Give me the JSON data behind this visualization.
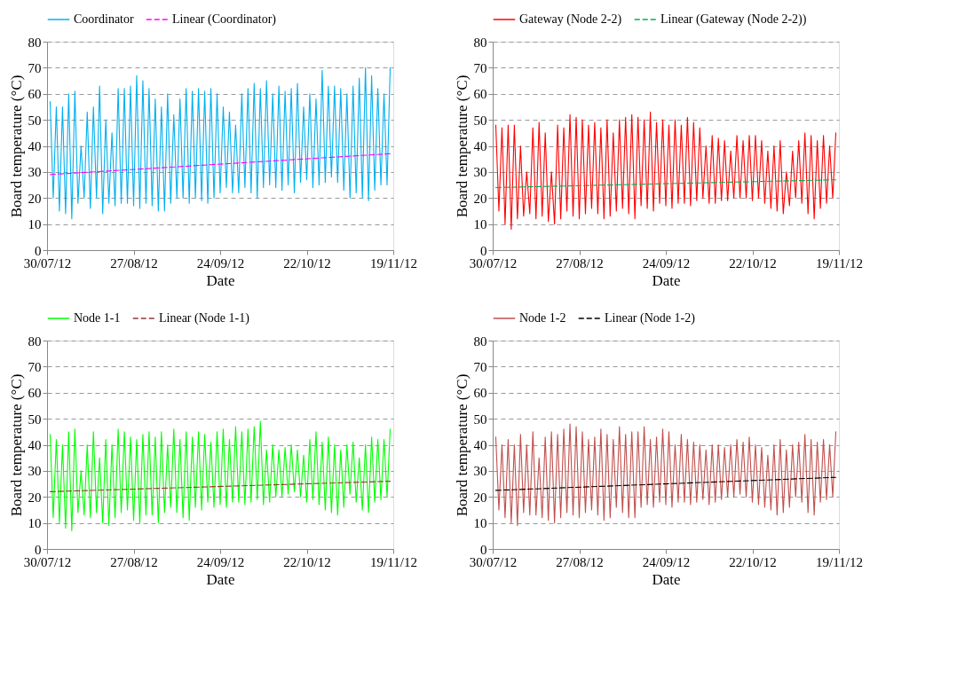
{
  "chart_data": [
    {
      "type": "line",
      "xlabel": "Date",
      "ylabel": "Board temperature (°C)",
      "legend": "top",
      "grid": "y",
      "ylim": [
        0,
        80
      ],
      "yticks": [
        0,
        10,
        20,
        30,
        40,
        50,
        60,
        70,
        80
      ],
      "xlim": [
        "2012-07-30",
        "2012-11-19"
      ],
      "xticks": [
        {
          "value": "2012-07-30",
          "label": "30/07/12"
        },
        {
          "value": "2012-08-27",
          "label": "27/08/12"
        },
        {
          "value": "2012-09-24",
          "label": "24/09/12"
        },
        {
          "value": "2012-10-22",
          "label": "22/10/12"
        },
        {
          "value": "2012-11-19",
          "label": "19/11/12"
        }
      ],
      "x": [
        "2012-07-31",
        "2012-08-01",
        "2012-08-02",
        "2012-08-03",
        "2012-08-04",
        "2012-08-05",
        "2012-08-06",
        "2012-08-07",
        "2012-08-08",
        "2012-08-09",
        "2012-08-10",
        "2012-08-11",
        "2012-08-12",
        "2012-08-13",
        "2012-08-14",
        "2012-08-15",
        "2012-08-16",
        "2012-08-17",
        "2012-08-18",
        "2012-08-19",
        "2012-08-20",
        "2012-08-21",
        "2012-08-22",
        "2012-08-23",
        "2012-08-24",
        "2012-08-25",
        "2012-08-26",
        "2012-08-27",
        "2012-08-28",
        "2012-08-29",
        "2012-08-30",
        "2012-08-31",
        "2012-09-01",
        "2012-09-02",
        "2012-09-03",
        "2012-09-04",
        "2012-09-05",
        "2012-09-06",
        "2012-09-07",
        "2012-09-08",
        "2012-09-09",
        "2012-09-10",
        "2012-09-11",
        "2012-09-12",
        "2012-09-13",
        "2012-09-14",
        "2012-09-15",
        "2012-09-16",
        "2012-09-17",
        "2012-09-18",
        "2012-09-19",
        "2012-09-20",
        "2012-09-21",
        "2012-09-22",
        "2012-09-23",
        "2012-09-24",
        "2012-09-25",
        "2012-09-26",
        "2012-09-27",
        "2012-09-28",
        "2012-09-29",
        "2012-09-30",
        "2012-10-01",
        "2012-10-02",
        "2012-10-03",
        "2012-10-04",
        "2012-10-05",
        "2012-10-06",
        "2012-10-07",
        "2012-10-08",
        "2012-10-09",
        "2012-10-10",
        "2012-10-11",
        "2012-10-12",
        "2012-10-13",
        "2012-10-14",
        "2012-10-15",
        "2012-10-16",
        "2012-10-17",
        "2012-10-18",
        "2012-10-19",
        "2012-10-20",
        "2012-10-21",
        "2012-10-22",
        "2012-10-23",
        "2012-10-24",
        "2012-10-25",
        "2012-10-26",
        "2012-10-27",
        "2012-10-28",
        "2012-10-29",
        "2012-10-30",
        "2012-10-31",
        "2012-11-01",
        "2012-11-02",
        "2012-11-03",
        "2012-11-04",
        "2012-11-05",
        "2012-11-06",
        "2012-11-07",
        "2012-11-08",
        "2012-11-09",
        "2012-11-10",
        "2012-11-11",
        "2012-11-12",
        "2012-11-13",
        "2012-11-14",
        "2012-11-15",
        "2012-11-16",
        "2012-11-17",
        "2012-11-18"
      ],
      "series": [
        {
          "name": "Coordinator",
          "color": "#00b0f0",
          "line_style": "solid",
          "values": [
            57,
            20,
            55,
            15,
            55,
            14,
            60,
            12,
            61,
            18,
            40,
            20,
            53,
            16,
            55,
            20,
            63,
            14,
            50,
            18,
            45,
            17,
            62,
            18,
            62,
            18,
            63,
            17,
            67,
            16,
            65,
            18,
            62,
            17,
            58,
            15,
            55,
            15,
            60,
            18,
            52,
            20,
            58,
            20,
            62,
            18,
            61,
            20,
            62,
            19,
            61,
            18,
            62,
            20,
            60,
            22,
            55,
            24,
            53,
            22,
            48,
            22,
            60,
            24,
            62,
            22,
            64,
            20,
            62,
            24,
            65,
            25,
            60,
            24,
            63,
            23,
            61,
            25,
            62,
            22,
            64,
            26,
            55,
            27,
            60,
            24,
            58,
            25,
            69,
            26,
            63,
            28,
            63,
            26,
            62,
            23,
            60,
            20,
            63,
            22,
            66,
            20,
            70,
            19,
            67,
            23,
            62,
            25,
            60,
            25,
            70
          ]
        },
        {
          "name": "Linear (Coordinator)",
          "color": "#ff00ff",
          "type": "line",
          "line_style": "dashed",
          "x": [
            "2012-07-31",
            "2012-11-18"
          ],
          "values": [
            29,
            37
          ]
        }
      ]
    },
    {
      "type": "line",
      "xlabel": "Date",
      "ylabel": "Board temperature (°C)",
      "legend": "top",
      "grid": "y",
      "ylim": [
        0,
        80
      ],
      "yticks": [
        0,
        10,
        20,
        30,
        40,
        50,
        60,
        70,
        80
      ],
      "xlim": [
        "2012-07-30",
        "2012-11-19"
      ],
      "xticks": [
        {
          "value": "2012-07-30",
          "label": "30/07/12"
        },
        {
          "value": "2012-08-27",
          "label": "27/08/12"
        },
        {
          "value": "2012-09-24",
          "label": "24/09/12"
        },
        {
          "value": "2012-10-22",
          "label": "22/10/12"
        },
        {
          "value": "2012-11-19",
          "label": "19/11/12"
        }
      ],
      "x": [
        "2012-07-31",
        "2012-08-01",
        "2012-08-02",
        "2012-08-03",
        "2012-08-04",
        "2012-08-05",
        "2012-08-06",
        "2012-08-07",
        "2012-08-08",
        "2012-08-09",
        "2012-08-10",
        "2012-08-11",
        "2012-08-12",
        "2012-08-13",
        "2012-08-14",
        "2012-08-15",
        "2012-08-16",
        "2012-08-17",
        "2012-08-18",
        "2012-08-19",
        "2012-08-20",
        "2012-08-21",
        "2012-08-22",
        "2012-08-23",
        "2012-08-24",
        "2012-08-25",
        "2012-08-26",
        "2012-08-27",
        "2012-08-28",
        "2012-08-29",
        "2012-08-30",
        "2012-08-31",
        "2012-09-01",
        "2012-09-02",
        "2012-09-03",
        "2012-09-04",
        "2012-09-05",
        "2012-09-06",
        "2012-09-07",
        "2012-09-08",
        "2012-09-09",
        "2012-09-10",
        "2012-09-11",
        "2012-09-12",
        "2012-09-13",
        "2012-09-14",
        "2012-09-15",
        "2012-09-16",
        "2012-09-17",
        "2012-09-18",
        "2012-09-19",
        "2012-09-20",
        "2012-09-21",
        "2012-09-22",
        "2012-09-23",
        "2012-09-24",
        "2012-09-25",
        "2012-09-26",
        "2012-09-27",
        "2012-09-28",
        "2012-09-29",
        "2012-09-30",
        "2012-10-01",
        "2012-10-02",
        "2012-10-03",
        "2012-10-04",
        "2012-10-05",
        "2012-10-06",
        "2012-10-07",
        "2012-10-08",
        "2012-10-09",
        "2012-10-10",
        "2012-10-11",
        "2012-10-12",
        "2012-10-13",
        "2012-10-14",
        "2012-10-15",
        "2012-10-16",
        "2012-10-17",
        "2012-10-18",
        "2012-10-19",
        "2012-10-20",
        "2012-10-21",
        "2012-10-22",
        "2012-10-23",
        "2012-10-24",
        "2012-10-25",
        "2012-10-26",
        "2012-10-27",
        "2012-10-28",
        "2012-10-29",
        "2012-10-30",
        "2012-10-31",
        "2012-11-01",
        "2012-11-02",
        "2012-11-03",
        "2012-11-04",
        "2012-11-05",
        "2012-11-06",
        "2012-11-07",
        "2012-11-08",
        "2012-11-09",
        "2012-11-10",
        "2012-11-11",
        "2012-11-12",
        "2012-11-13",
        "2012-11-14",
        "2012-11-15",
        "2012-11-16",
        "2012-11-17",
        "2012-11-18"
      ],
      "series": [
        {
          "name": "Gateway (Node 2-2)",
          "color": "#ff0000",
          "line_style": "solid",
          "values": [
            48,
            15,
            47,
            10,
            48,
            8,
            48,
            12,
            40,
            13,
            30,
            14,
            47,
            12,
            49,
            13,
            45,
            11,
            30,
            10,
            48,
            12,
            47,
            15,
            52,
            13,
            51,
            12,
            50,
            14,
            48,
            16,
            49,
            14,
            47,
            12,
            50,
            13,
            45,
            15,
            50,
            16,
            51,
            14,
            52,
            12,
            51,
            17,
            50,
            16,
            53,
            15,
            49,
            18,
            50,
            17,
            48,
            16,
            50,
            18,
            48,
            18,
            51,
            17,
            49,
            19,
            47,
            20,
            40,
            18,
            44,
            18,
            43,
            19,
            42,
            19,
            38,
            20,
            44,
            20,
            42,
            20,
            44,
            19,
            44,
            20,
            42,
            18,
            38,
            16,
            40,
            15,
            42,
            14,
            30,
            17,
            38,
            20,
            42,
            18,
            45,
            14,
            44,
            12,
            42,
            16,
            44,
            18,
            40,
            20,
            45
          ]
        },
        {
          "name": "Linear (Gateway (Node 2-2))",
          "color": "#00b050",
          "type": "line",
          "line_style": "dashed",
          "x": [
            "2012-07-31",
            "2012-11-18"
          ],
          "values": [
            24,
            27
          ]
        }
      ]
    },
    {
      "type": "line",
      "xlabel": "Date",
      "ylabel": "Board temperature (°C)",
      "legend": "top",
      "grid": "y",
      "ylim": [
        0,
        80
      ],
      "yticks": [
        0,
        10,
        20,
        30,
        40,
        50,
        60,
        70,
        80
      ],
      "xlim": [
        "2012-07-30",
        "2012-11-19"
      ],
      "xticks": [
        {
          "value": "2012-07-30",
          "label": "30/07/12"
        },
        {
          "value": "2012-08-27",
          "label": "27/08/12"
        },
        {
          "value": "2012-09-24",
          "label": "24/09/12"
        },
        {
          "value": "2012-10-22",
          "label": "22/10/12"
        },
        {
          "value": "2012-11-19",
          "label": "19/11/12"
        }
      ],
      "x": [
        "2012-07-31",
        "2012-08-01",
        "2012-08-02",
        "2012-08-03",
        "2012-08-04",
        "2012-08-05",
        "2012-08-06",
        "2012-08-07",
        "2012-08-08",
        "2012-08-09",
        "2012-08-10",
        "2012-08-11",
        "2012-08-12",
        "2012-08-13",
        "2012-08-14",
        "2012-08-15",
        "2012-08-16",
        "2012-08-17",
        "2012-08-18",
        "2012-08-19",
        "2012-08-20",
        "2012-08-21",
        "2012-08-22",
        "2012-08-23",
        "2012-08-24",
        "2012-08-25",
        "2012-08-26",
        "2012-08-27",
        "2012-08-28",
        "2012-08-29",
        "2012-08-30",
        "2012-08-31",
        "2012-09-01",
        "2012-09-02",
        "2012-09-03",
        "2012-09-04",
        "2012-09-05",
        "2012-09-06",
        "2012-09-07",
        "2012-09-08",
        "2012-09-09",
        "2012-09-10",
        "2012-09-11",
        "2012-09-12",
        "2012-09-13",
        "2012-09-14",
        "2012-09-15",
        "2012-09-16",
        "2012-09-17",
        "2012-09-18",
        "2012-09-19",
        "2012-09-20",
        "2012-09-21",
        "2012-09-22",
        "2012-09-23",
        "2012-09-24",
        "2012-09-25",
        "2012-09-26",
        "2012-09-27",
        "2012-09-28",
        "2012-09-29",
        "2012-09-30",
        "2012-10-01",
        "2012-10-02",
        "2012-10-03",
        "2012-10-04",
        "2012-10-05",
        "2012-10-06",
        "2012-10-07",
        "2012-10-08",
        "2012-10-09",
        "2012-10-10",
        "2012-10-11",
        "2012-10-12",
        "2012-10-13",
        "2012-10-14",
        "2012-10-15",
        "2012-10-16",
        "2012-10-17",
        "2012-10-18",
        "2012-10-19",
        "2012-10-20",
        "2012-10-21",
        "2012-10-22",
        "2012-10-23",
        "2012-10-24",
        "2012-10-25",
        "2012-10-26",
        "2012-10-27",
        "2012-10-28",
        "2012-10-29",
        "2012-10-30",
        "2012-10-31",
        "2012-11-01",
        "2012-11-02",
        "2012-11-03",
        "2012-11-04",
        "2012-11-05",
        "2012-11-06",
        "2012-11-07",
        "2012-11-08",
        "2012-11-09",
        "2012-11-10",
        "2012-11-11",
        "2012-11-12",
        "2012-11-13",
        "2012-11-14",
        "2012-11-15",
        "2012-11-16",
        "2012-11-17",
        "2012-11-18"
      ],
      "series": [
        {
          "name": "Node 1-1",
          "color": "#00ff00",
          "line_style": "solid",
          "values": [
            44,
            12,
            42,
            10,
            40,
            8,
            45,
            7,
            46,
            14,
            30,
            13,
            40,
            12,
            45,
            14,
            35,
            10,
            42,
            9,
            40,
            12,
            46,
            14,
            45,
            15,
            43,
            11,
            42,
            10,
            44,
            13,
            45,
            13,
            43,
            10,
            45,
            14,
            40,
            16,
            46,
            14,
            42,
            12,
            45,
            11,
            43,
            16,
            45,
            15,
            44,
            18,
            41,
            16,
            45,
            17,
            46,
            16,
            42,
            18,
            47,
            18,
            45,
            17,
            46,
            18,
            47,
            19,
            49,
            17,
            38,
            18,
            40,
            20,
            38,
            20,
            39,
            21,
            40,
            22,
            38,
            20,
            36,
            18,
            42,
            19,
            45,
            17,
            41,
            15,
            43,
            14,
            40,
            13,
            38,
            16,
            40,
            21,
            41,
            18,
            35,
            15,
            40,
            14,
            43,
            18,
            42,
            19,
            42,
            20,
            46
          ]
        },
        {
          "name": "Linear (Node 1-1)",
          "color": "#953735",
          "type": "line",
          "line_style": "dashed",
          "x": [
            "2012-07-31",
            "2012-11-18"
          ],
          "values": [
            22,
            26
          ]
        }
      ]
    },
    {
      "type": "line",
      "xlabel": "Date",
      "ylabel": "Board temperature (°C)",
      "legend": "top",
      "grid": "y",
      "ylim": [
        0,
        80
      ],
      "yticks": [
        0,
        10,
        20,
        30,
        40,
        50,
        60,
        70,
        80
      ],
      "xlim": [
        "2012-07-30",
        "2012-11-19"
      ],
      "xticks": [
        {
          "value": "2012-07-30",
          "label": "30/07/12"
        },
        {
          "value": "2012-08-27",
          "label": "27/08/12"
        },
        {
          "value": "2012-09-24",
          "label": "24/09/12"
        },
        {
          "value": "2012-10-22",
          "label": "22/10/12"
        },
        {
          "value": "2012-11-19",
          "label": "19/11/12"
        }
      ],
      "x": [
        "2012-07-31",
        "2012-08-01",
        "2012-08-02",
        "2012-08-03",
        "2012-08-04",
        "2012-08-05",
        "2012-08-06",
        "2012-08-07",
        "2012-08-08",
        "2012-08-09",
        "2012-08-10",
        "2012-08-11",
        "2012-08-12",
        "2012-08-13",
        "2012-08-14",
        "2012-08-15",
        "2012-08-16",
        "2012-08-17",
        "2012-08-18",
        "2012-08-19",
        "2012-08-20",
        "2012-08-21",
        "2012-08-22",
        "2012-08-23",
        "2012-08-24",
        "2012-08-25",
        "2012-08-26",
        "2012-08-27",
        "2012-08-28",
        "2012-08-29",
        "2012-08-30",
        "2012-08-31",
        "2012-09-01",
        "2012-09-02",
        "2012-09-03",
        "2012-09-04",
        "2012-09-05",
        "2012-09-06",
        "2012-09-07",
        "2012-09-08",
        "2012-09-09",
        "2012-09-10",
        "2012-09-11",
        "2012-09-12",
        "2012-09-13",
        "2012-09-14",
        "2012-09-15",
        "2012-09-16",
        "2012-09-17",
        "2012-09-18",
        "2012-09-19",
        "2012-09-20",
        "2012-09-21",
        "2012-09-22",
        "2012-09-23",
        "2012-09-24",
        "2012-09-25",
        "2012-09-26",
        "2012-09-27",
        "2012-09-28",
        "2012-09-29",
        "2012-09-30",
        "2012-10-01",
        "2012-10-02",
        "2012-10-03",
        "2012-10-04",
        "2012-10-05",
        "2012-10-06",
        "2012-10-07",
        "2012-10-08",
        "2012-10-09",
        "2012-10-10",
        "2012-10-11",
        "2012-10-12",
        "2012-10-13",
        "2012-10-14",
        "2012-10-15",
        "2012-10-16",
        "2012-10-17",
        "2012-10-18",
        "2012-10-19",
        "2012-10-20",
        "2012-10-21",
        "2012-10-22",
        "2012-10-23",
        "2012-10-24",
        "2012-10-25",
        "2012-10-26",
        "2012-10-27",
        "2012-10-28",
        "2012-10-29",
        "2012-10-30",
        "2012-10-31",
        "2012-11-01",
        "2012-11-02",
        "2012-11-03",
        "2012-11-04",
        "2012-11-05",
        "2012-11-06",
        "2012-11-07",
        "2012-11-08",
        "2012-11-09",
        "2012-11-10",
        "2012-11-11",
        "2012-11-12",
        "2012-11-13",
        "2012-11-14",
        "2012-11-15",
        "2012-11-16",
        "2012-11-17",
        "2012-11-18"
      ],
      "series": [
        {
          "name": "Node 1-2",
          "color": "#c0504d",
          "line_style": "solid",
          "values": [
            43,
            15,
            40,
            12,
            42,
            10,
            40,
            9,
            44,
            14,
            40,
            13,
            45,
            13,
            35,
            12,
            43,
            11,
            45,
            10,
            44,
            12,
            46,
            14,
            48,
            13,
            47,
            12,
            45,
            14,
            42,
            15,
            43,
            13,
            46,
            11,
            44,
            12,
            42,
            16,
            47,
            14,
            44,
            12,
            45,
            12,
            45,
            16,
            47,
            17,
            42,
            16,
            43,
            18,
            46,
            17,
            45,
            16,
            40,
            18,
            44,
            18,
            42,
            17,
            41,
            18,
            40,
            19,
            38,
            17,
            40,
            18,
            40,
            19,
            39,
            20,
            40,
            20,
            42,
            21,
            41,
            20,
            43,
            18,
            40,
            17,
            39,
            16,
            36,
            15,
            40,
            13,
            42,
            14,
            38,
            16,
            40,
            20,
            41,
            18,
            44,
            14,
            42,
            13,
            41,
            18,
            42,
            19,
            40,
            20,
            45
          ]
        },
        {
          "name": "Linear (Node 1-2)",
          "color": "#000000",
          "type": "line",
          "line_style": "dashed",
          "x": [
            "2012-07-31",
            "2012-11-18"
          ],
          "values": [
            22.5,
            27.5
          ]
        }
      ]
    }
  ]
}
